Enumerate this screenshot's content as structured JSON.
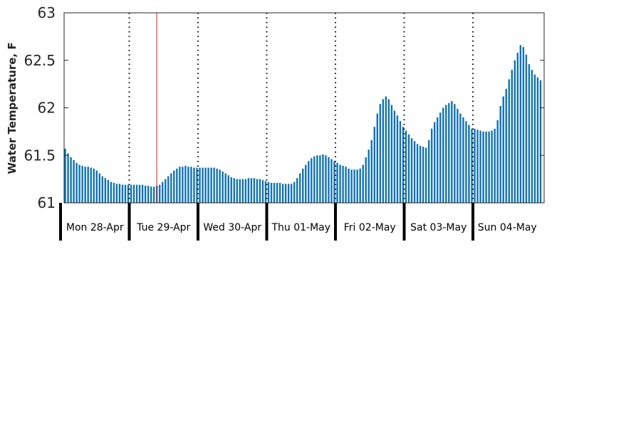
{
  "chart_data": {
    "type": "bar",
    "title": "",
    "xlabel": "",
    "ylabel": "Water Temperature, F",
    "ylim": [
      61,
      63
    ],
    "yticks": [
      "61",
      "61.5",
      "62",
      "62.5",
      "63"
    ],
    "days": [
      "Mon 28-Apr",
      "Tue 29-Apr",
      "Wed 30-Apr",
      "Thu 01-May",
      "Fri 02-May",
      "Sat 03-May",
      "Sun 04-May"
    ],
    "bars_per_day": 24,
    "marker_day_fraction": 1.4,
    "colors": {
      "bar": "#0f72b3",
      "marker": "#e41a1c",
      "divider": "#000000"
    },
    "values": [
      61.63,
      61.57,
      61.52,
      61.48,
      61.45,
      61.42,
      61.4,
      61.39,
      61.38,
      61.38,
      61.37,
      61.36,
      61.34,
      61.31,
      61.28,
      61.26,
      61.24,
      61.22,
      61.21,
      61.2,
      61.2,
      61.19,
      61.19,
      61.19,
      61.19,
      61.19,
      61.19,
      61.19,
      61.19,
      61.18,
      61.18,
      61.17,
      61.17,
      61.18,
      61.19,
      61.22,
      61.25,
      61.28,
      61.31,
      61.34,
      61.36,
      61.38,
      61.38,
      61.39,
      61.38,
      61.38,
      61.37,
      61.37,
      61.37,
      61.37,
      61.37,
      61.37,
      61.37,
      61.37,
      61.36,
      61.35,
      61.33,
      61.31,
      61.29,
      61.27,
      61.26,
      61.25,
      61.25,
      61.25,
      61.25,
      61.26,
      61.26,
      61.26,
      61.25,
      61.25,
      61.24,
      61.23,
      61.22,
      61.21,
      61.21,
      61.21,
      61.21,
      61.2,
      61.2,
      61.2,
      61.2,
      61.22,
      61.26,
      61.31,
      61.36,
      61.4,
      61.44,
      61.47,
      61.49,
      61.5,
      61.5,
      61.51,
      61.5,
      61.48,
      61.46,
      61.44,
      61.42,
      61.4,
      61.39,
      61.38,
      61.36,
      61.35,
      61.35,
      61.35,
      61.36,
      61.4,
      61.48,
      61.56,
      61.66,
      61.8,
      61.94,
      62.04,
      62.09,
      62.12,
      62.09,
      62.03,
      61.97,
      61.92,
      61.86,
      61.8,
      61.76,
      61.72,
      61.68,
      61.65,
      61.62,
      61.6,
      61.59,
      61.58,
      61.66,
      61.78,
      61.85,
      61.9,
      61.95,
      62.0,
      62.03,
      62.05,
      62.07,
      62.04,
      61.99,
      61.94,
      61.9,
      61.86,
      61.82,
      61.78,
      61.78,
      61.77,
      61.76,
      61.75,
      61.75,
      61.75,
      61.76,
      61.78,
      61.87,
      62.02,
      62.12,
      62.2,
      62.3,
      62.4,
      62.5,
      62.58,
      62.66,
      62.64,
      62.56,
      62.46,
      62.4,
      62.35,
      62.32,
      62.29
    ]
  }
}
